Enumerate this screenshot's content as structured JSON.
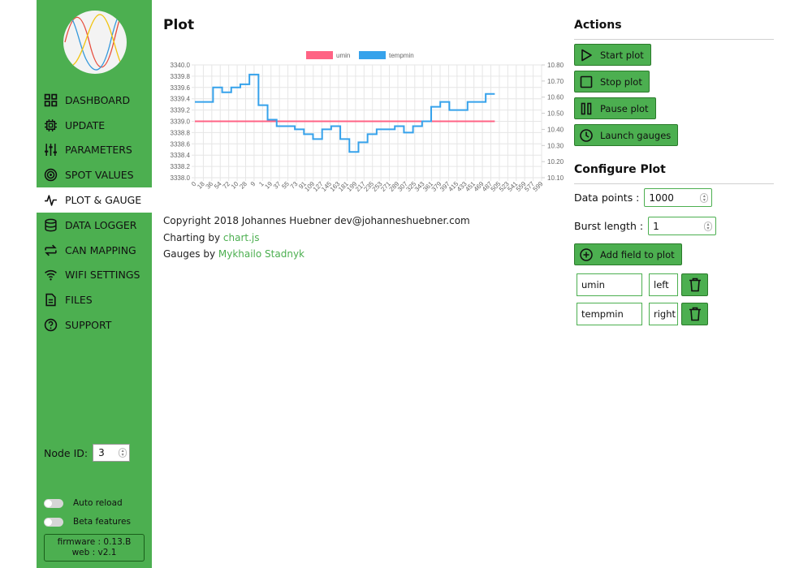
{
  "sidebar": {
    "nav": [
      {
        "label": "DASHBOARD",
        "icon": "grid-icon"
      },
      {
        "label": "UPDATE",
        "icon": "chip-icon"
      },
      {
        "label": "PARAMETERS",
        "icon": "sliders-icon"
      },
      {
        "label": "SPOT VALUES",
        "icon": "target-icon"
      },
      {
        "label": "PLOT & GAUGE",
        "icon": "pulse-icon",
        "active": true
      },
      {
        "label": "DATA LOGGER",
        "icon": "database-icon"
      },
      {
        "label": "CAN MAPPING",
        "icon": "swap-icon"
      },
      {
        "label": "WIFI SETTINGS",
        "icon": "wifi-icon"
      },
      {
        "label": "FILES",
        "icon": "file-icon"
      },
      {
        "label": "SUPPORT",
        "icon": "help-icon"
      }
    ],
    "node_id_label": "Node ID:",
    "node_id_value": "3",
    "auto_reload_label": "Auto reload",
    "beta_features_label": "Beta features",
    "firmware": "firmware : 0.13.B",
    "web": "web : v2.1"
  },
  "main": {
    "title": "Plot",
    "credits": {
      "copyright": "Copyright 2018 Johannes Huebner dev@johanneshuebner.com",
      "charting_prefix": "Charting by ",
      "charting_link": "chart.js",
      "gauges_prefix": "Gauges by ",
      "gauges_link": "Mykhailo Stadnyk"
    }
  },
  "actions": {
    "title": "Actions",
    "start": "Start plot",
    "stop": "Stop plot",
    "pause": "Pause plot",
    "gauges": "Launch gauges"
  },
  "configure": {
    "title": "Configure Plot",
    "data_points_label": "Data points :",
    "data_points_value": "1000",
    "burst_label": "Burst length :",
    "burst_value": "1",
    "add_field": "Add field to plot",
    "fields": [
      {
        "name": "umin",
        "axis": "left"
      },
      {
        "name": "tempmin",
        "axis": "right"
      }
    ]
  },
  "colors": {
    "accent": "#4caf50",
    "umin": "#ff6384",
    "tempmin": "#36a2eb"
  },
  "chart_data": {
    "type": "line",
    "legend": [
      "umin",
      "tempmin"
    ],
    "legend_position": "top",
    "grid": true,
    "x_tick_labels": [
      "0",
      "18",
      "36",
      "54",
      "72",
      "10",
      "28",
      "9",
      "1",
      "19",
      "37",
      "55",
      "73",
      "91",
      "109",
      "127",
      "145",
      "163",
      "181",
      "199",
      "217",
      "235",
      "253",
      "271",
      "289",
      "307",
      "325",
      "343",
      "361",
      "379",
      "397",
      "415",
      "433",
      "451",
      "469",
      "487",
      "505",
      "523",
      "541",
      "559",
      "577",
      "599"
    ],
    "y_left_ticks": [
      "3340.0",
      "3339.8",
      "3339.6",
      "3339.4",
      "3339.2",
      "3339.0",
      "3338.8",
      "3338.6",
      "3338.4",
      "3338.2",
      "3338.0"
    ],
    "y_right_ticks": [
      "10.80",
      "10.70",
      "10.60",
      "10.50",
      "10.40",
      "10.30",
      "10.20",
      "10.10"
    ],
    "y_left_range": [
      3338.0,
      3340.0
    ],
    "y_right_range": [
      10.1,
      10.8
    ],
    "series": [
      {
        "name": "umin",
        "axis": "left",
        "x": [
          0,
          33
        ],
        "y": [
          3339.0,
          3339.0
        ]
      },
      {
        "name": "tempmin",
        "axis": "right",
        "x": [
          0,
          1,
          2,
          3,
          4,
          5,
          6,
          7,
          8,
          9,
          10,
          11,
          12,
          13,
          14,
          15,
          16,
          17,
          18,
          19,
          20,
          21,
          22,
          23,
          24,
          25,
          26,
          27,
          28,
          29,
          30,
          31,
          32,
          33
        ],
        "y": [
          10.57,
          10.57,
          10.66,
          10.63,
          10.66,
          10.68,
          10.74,
          10.55,
          10.46,
          10.42,
          10.42,
          10.4,
          10.37,
          10.34,
          10.4,
          10.42,
          10.34,
          10.26,
          10.32,
          10.37,
          10.4,
          10.4,
          10.42,
          10.38,
          10.42,
          10.45,
          10.54,
          10.57,
          10.52,
          10.52,
          10.57,
          10.57,
          10.62,
          10.62
        ]
      }
    ]
  }
}
